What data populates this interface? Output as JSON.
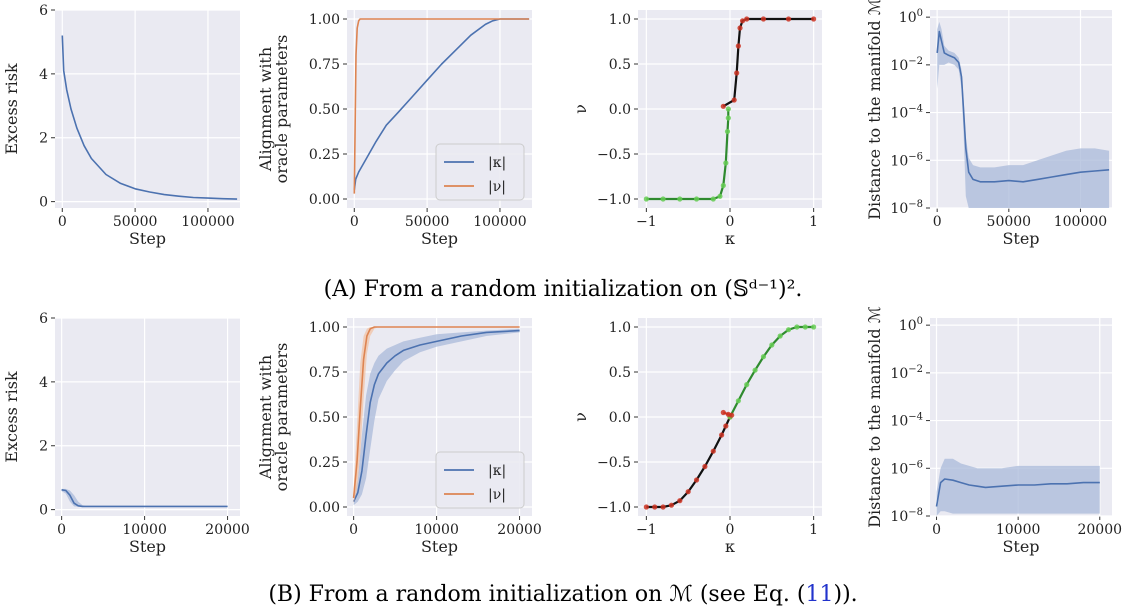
{
  "captions": {
    "a": "(A) From a random initialization on (𝕊ᵈ⁻¹)².",
    "b_prefix": "(B) From a random initialization on ℳ (see Eq. (",
    "b_ref": "11",
    "b_suffix": "))."
  },
  "colors": {
    "panel_bg": "#eaeaf2",
    "grid": "#ffffff",
    "blue": "#4c72b0",
    "orange": "#dd8452",
    "blue_band": "#a9b9d9",
    "orange_band": "#f1c3a6"
  },
  "chart_data": [
    {
      "id": "a1",
      "type": "line",
      "row": 0,
      "col": 0,
      "ylabel": "Excess risk",
      "xlabel": "Step",
      "xlim": [
        -5000,
        122000
      ],
      "ylim": [
        -0.2,
        6.0
      ],
      "xticks": [
        0,
        50000,
        100000
      ],
      "xticklabels": [
        "0",
        "50000",
        "100000"
      ],
      "yticks": [
        0,
        2,
        4,
        6
      ],
      "yticklabels": [
        "0",
        "2",
        "4",
        "6"
      ],
      "series": [
        {
          "color": "blue",
          "x": [
            0,
            1000,
            3000,
            6000,
            10000,
            15000,
            20000,
            30000,
            40000,
            50000,
            60000,
            70000,
            80000,
            90000,
            100000,
            110000,
            120000
          ],
          "y": [
            5.2,
            4.1,
            3.5,
            2.9,
            2.3,
            1.75,
            1.35,
            0.85,
            0.57,
            0.4,
            0.3,
            0.22,
            0.17,
            0.13,
            0.11,
            0.09,
            0.08
          ]
        }
      ]
    },
    {
      "id": "a2",
      "type": "line",
      "row": 0,
      "col": 1,
      "ylabel": "Alignment with oracle parameters",
      "xlabel": "Step",
      "xlim": [
        -5000,
        122000
      ],
      "ylim": [
        -0.05,
        1.05
      ],
      "xticks": [
        0,
        50000,
        100000
      ],
      "xticklabels": [
        "0",
        "50000",
        "100000"
      ],
      "yticks": [
        0,
        0.25,
        0.5,
        0.75,
        1.0
      ],
      "yticklabels": [
        "0.00",
        "0.25",
        "0.50",
        "0.75",
        "1.00"
      ],
      "legend": {
        "position": "lower-right",
        "entries": [
          "|κ|",
          "|ν|"
        ]
      },
      "series": [
        {
          "label": "|κ|",
          "color": "blue",
          "x": [
            0,
            1000,
            3000,
            8000,
            15000,
            22000,
            30000,
            40000,
            50000,
            60000,
            70000,
            80000,
            90000,
            95000,
            100000,
            110000,
            120000
          ],
          "y": [
            0.05,
            0.11,
            0.15,
            0.22,
            0.32,
            0.41,
            0.48,
            0.57,
            0.66,
            0.75,
            0.83,
            0.91,
            0.97,
            0.99,
            1.0,
            1.0,
            1.0
          ]
        },
        {
          "label": "|ν|",
          "color": "orange",
          "x": [
            0,
            500,
            1200,
            2000,
            3000,
            4000,
            120000
          ],
          "y": [
            0.03,
            0.35,
            0.8,
            0.95,
            0.99,
            1.0,
            1.0
          ]
        }
      ]
    },
    {
      "id": "a3",
      "type": "scatter",
      "row": 0,
      "col": 2,
      "ylabel": "ν",
      "xlabel": "κ",
      "xlim": [
        -1.1,
        1.1
      ],
      "ylim": [
        -1.1,
        1.1
      ],
      "xticks": [
        -1,
        0,
        1
      ],
      "xticklabels": [
        "−1",
        "0",
        "1"
      ],
      "yticks": [
        -1,
        -0.5,
        0,
        0.5,
        1
      ],
      "yticklabels": [
        "−1.0",
        "−0.5",
        "0.0",
        "0.5",
        "1.0"
      ],
      "trajectories": [
        {
          "line_color": "#2f8a2f",
          "marker_color": "#66cc55",
          "x": [
            -1.0,
            -0.8,
            -0.6,
            -0.4,
            -0.2,
            -0.12,
            -0.08,
            -0.05,
            -0.03,
            -0.02,
            -0.02
          ],
          "y": [
            -1.0,
            -1.0,
            -1.0,
            -1.0,
            -1.0,
            -0.97,
            -0.85,
            -0.6,
            -0.25,
            -0.1,
            0.0
          ]
        },
        {
          "line_color": "#111111",
          "marker_color": "#cc3322",
          "x": [
            -0.08,
            0.05,
            0.08,
            0.1,
            0.12,
            0.15,
            0.2,
            0.4,
            0.7,
            1.0
          ],
          "y": [
            0.03,
            0.1,
            0.4,
            0.7,
            0.9,
            0.98,
            1.0,
            1.0,
            1.0,
            1.0
          ]
        }
      ]
    },
    {
      "id": "a4",
      "type": "line",
      "row": 0,
      "col": 3,
      "yscale": "log",
      "ylabel": "Distance to the manifold ℳ",
      "xlabel": "Step",
      "xlim": [
        -5000,
        122000
      ],
      "ylim_log10": [
        -8,
        0.3
      ],
      "xticks": [
        0,
        50000,
        100000
      ],
      "xticklabels": [
        "0",
        "50000",
        "100000"
      ],
      "ytick_exponents": [
        0,
        -2,
        -4,
        -6,
        -8
      ],
      "series": [
        {
          "color": "blue",
          "x": [
            0,
            1500,
            3000,
            5000,
            8000,
            12000,
            15000,
            17000,
            18500,
            20000,
            22000,
            25000,
            30000,
            40000,
            50000,
            60000,
            70000,
            80000,
            90000,
            100000,
            110000,
            120000
          ],
          "y_log10": [
            -1.5,
            -0.6,
            -1.0,
            -1.5,
            -1.6,
            -1.7,
            -1.9,
            -2.5,
            -4.0,
            -5.5,
            -6.5,
            -6.8,
            -6.9,
            -6.9,
            -6.85,
            -6.9,
            -6.8,
            -6.7,
            -6.6,
            -6.5,
            -6.45,
            -6.4
          ],
          "band_upper": [
            -0.5,
            -0.2,
            -0.5,
            -1.2,
            -1.4,
            -1.5,
            -1.7,
            -2.2,
            -3.5,
            -5.0,
            -5.9,
            -6.2,
            -6.3,
            -6.3,
            -6.2,
            -6.2,
            -6.0,
            -5.8,
            -5.6,
            -5.5,
            -5.5,
            -5.6
          ],
          "band_lower": [
            -3.0,
            -2.0,
            -2.0,
            -2.0,
            -1.9,
            -2.0,
            -2.2,
            -3.0,
            -5.0,
            -7.5,
            -8.0,
            -8.0,
            -8.0,
            -8.0,
            -8.0,
            -8.0,
            -8.0,
            -8.0,
            -8.0,
            -8.0,
            -8.0,
            -8.0
          ]
        }
      ]
    },
    {
      "id": "b1",
      "type": "line",
      "row": 1,
      "col": 0,
      "ylabel": "Excess risk",
      "xlabel": "Step",
      "xlim": [
        -800,
        21500
      ],
      "ylim": [
        -0.2,
        6.0
      ],
      "xticks": [
        0,
        10000,
        20000
      ],
      "xticklabels": [
        "0",
        "10000",
        "20000"
      ],
      "yticks": [
        0,
        2,
        4,
        6
      ],
      "yticklabels": [
        "0",
        "2",
        "4",
        "6"
      ],
      "series": [
        {
          "color": "blue",
          "x": [
            0,
            500,
            1000,
            1500,
            2000,
            2500,
            3000,
            5000,
            20000
          ],
          "y": [
            0.62,
            0.6,
            0.45,
            0.2,
            0.12,
            0.1,
            0.1,
            0.1,
            0.1
          ],
          "band_upper": [
            0.65,
            0.65,
            0.6,
            0.45,
            0.25,
            0.14,
            0.11,
            0.1,
            0.1
          ],
          "band_lower": [
            0.58,
            0.5,
            0.25,
            0.1,
            0.09,
            0.09,
            0.09,
            0.09,
            0.09
          ]
        }
      ]
    },
    {
      "id": "b2",
      "type": "line",
      "row": 1,
      "col": 1,
      "ylabel": "Alignment with oracle parameters",
      "xlabel": "Step",
      "xlim": [
        -800,
        21500
      ],
      "ylim": [
        -0.05,
        1.05
      ],
      "xticks": [
        0,
        10000,
        20000
      ],
      "xticklabels": [
        "0",
        "10000",
        "20000"
      ],
      "yticks": [
        0,
        0.25,
        0.5,
        0.75,
        1.0
      ],
      "yticklabels": [
        "0.00",
        "0.25",
        "0.50",
        "0.75",
        "1.00"
      ],
      "legend": {
        "position": "lower-right",
        "entries": [
          "|κ|",
          "|ν|"
        ]
      },
      "series": [
        {
          "label": "|κ|",
          "color": "blue",
          "x": [
            0,
            500,
            1000,
            1500,
            2000,
            2500,
            3000,
            4000,
            5000,
            6000,
            8000,
            10000,
            13000,
            16000,
            20000
          ],
          "y": [
            0.03,
            0.08,
            0.2,
            0.4,
            0.58,
            0.68,
            0.74,
            0.8,
            0.84,
            0.87,
            0.9,
            0.92,
            0.95,
            0.97,
            0.98
          ],
          "band_upper": [
            0.06,
            0.15,
            0.4,
            0.62,
            0.74,
            0.8,
            0.84,
            0.88,
            0.9,
            0.92,
            0.94,
            0.96,
            0.97,
            0.98,
            0.99
          ],
          "band_lower": [
            0.01,
            0.03,
            0.07,
            0.16,
            0.32,
            0.48,
            0.6,
            0.7,
            0.76,
            0.81,
            0.86,
            0.89,
            0.92,
            0.95,
            0.97
          ]
        },
        {
          "label": "|ν|",
          "color": "orange",
          "x": [
            0,
            400,
            800,
            1200,
            1600,
            2000,
            2500,
            3000,
            20000
          ],
          "y": [
            0.05,
            0.25,
            0.55,
            0.82,
            0.95,
            0.99,
            1.0,
            1.0,
            1.0
          ],
          "band_upper": [
            0.1,
            0.45,
            0.8,
            0.95,
            0.99,
            1.0,
            1.0,
            1.0,
            1.0
          ],
          "band_lower": [
            0.02,
            0.1,
            0.3,
            0.6,
            0.85,
            0.95,
            0.99,
            1.0,
            1.0
          ]
        }
      ]
    },
    {
      "id": "b3",
      "type": "scatter",
      "row": 1,
      "col": 2,
      "ylabel": "ν",
      "xlabel": "κ",
      "xlim": [
        -1.1,
        1.1
      ],
      "ylim": [
        -1.1,
        1.1
      ],
      "xticks": [
        -1,
        0,
        1
      ],
      "xticklabels": [
        "−1",
        "0",
        "1"
      ],
      "yticks": [
        -1,
        -0.5,
        0,
        0.5,
        1
      ],
      "yticklabels": [
        "−1.0",
        "−0.5",
        "0.0",
        "0.5",
        "1.0"
      ],
      "trajectories": [
        {
          "line_color": "#111111",
          "marker_color": "#cc3322",
          "x": [
            -1.0,
            -0.9,
            -0.8,
            -0.7,
            -0.6,
            -0.5,
            -0.4,
            -0.3,
            -0.2,
            -0.1,
            -0.05,
            0.0
          ],
          "y": [
            -1.0,
            -1.0,
            -1.0,
            -0.98,
            -0.93,
            -0.83,
            -0.7,
            -0.55,
            -0.38,
            -0.2,
            -0.1,
            0.0
          ]
        },
        {
          "line_color": "#2f8a2f",
          "marker_color": "#66cc55",
          "x": [
            0.0,
            0.1,
            0.2,
            0.3,
            0.4,
            0.5,
            0.6,
            0.7,
            0.8,
            0.9,
            1.0
          ],
          "y": [
            0.0,
            0.18,
            0.36,
            0.52,
            0.67,
            0.8,
            0.9,
            0.97,
            1.0,
            1.0,
            1.0
          ]
        },
        {
          "line_color": "#cc3322",
          "marker_color": "#cc3322",
          "x": [
            -0.08,
            -0.02,
            0.02
          ],
          "y": [
            0.05,
            0.03,
            0.02
          ]
        }
      ]
    },
    {
      "id": "b4",
      "type": "line",
      "row": 1,
      "col": 3,
      "yscale": "log",
      "ylabel": "Distance to the manifold ℳ",
      "xlabel": "Step",
      "xlim": [
        -800,
        21500
      ],
      "ylim_log10": [
        -8,
        0.3
      ],
      "xticks": [
        0,
        10000,
        20000
      ],
      "xticklabels": [
        "0",
        "10000",
        "20000"
      ],
      "ytick_exponents": [
        0,
        -2,
        -4,
        -6,
        -8
      ],
      "series": [
        {
          "color": "blue",
          "x": [
            0,
            500,
            1000,
            2000,
            3000,
            4000,
            5000,
            6000,
            8000,
            10000,
            12000,
            14000,
            16000,
            18000,
            20000
          ],
          "y_log10": [
            -7.6,
            -6.6,
            -6.45,
            -6.5,
            -6.6,
            -6.7,
            -6.75,
            -6.8,
            -6.75,
            -6.7,
            -6.7,
            -6.65,
            -6.65,
            -6.6,
            -6.6
          ],
          "band_upper": [
            -7.0,
            -6.0,
            -5.6,
            -5.6,
            -5.8,
            -5.9,
            -6.0,
            -6.0,
            -6.0,
            -5.9,
            -5.9,
            -5.9,
            -5.9,
            -5.9,
            -5.9
          ],
          "band_lower": [
            -8.0,
            -7.8,
            -7.8,
            -7.9,
            -7.9,
            -7.9,
            -7.9,
            -7.9,
            -7.9,
            -7.9,
            -7.9,
            -7.9,
            -7.9,
            -7.9,
            -7.9
          ]
        }
      ]
    }
  ]
}
